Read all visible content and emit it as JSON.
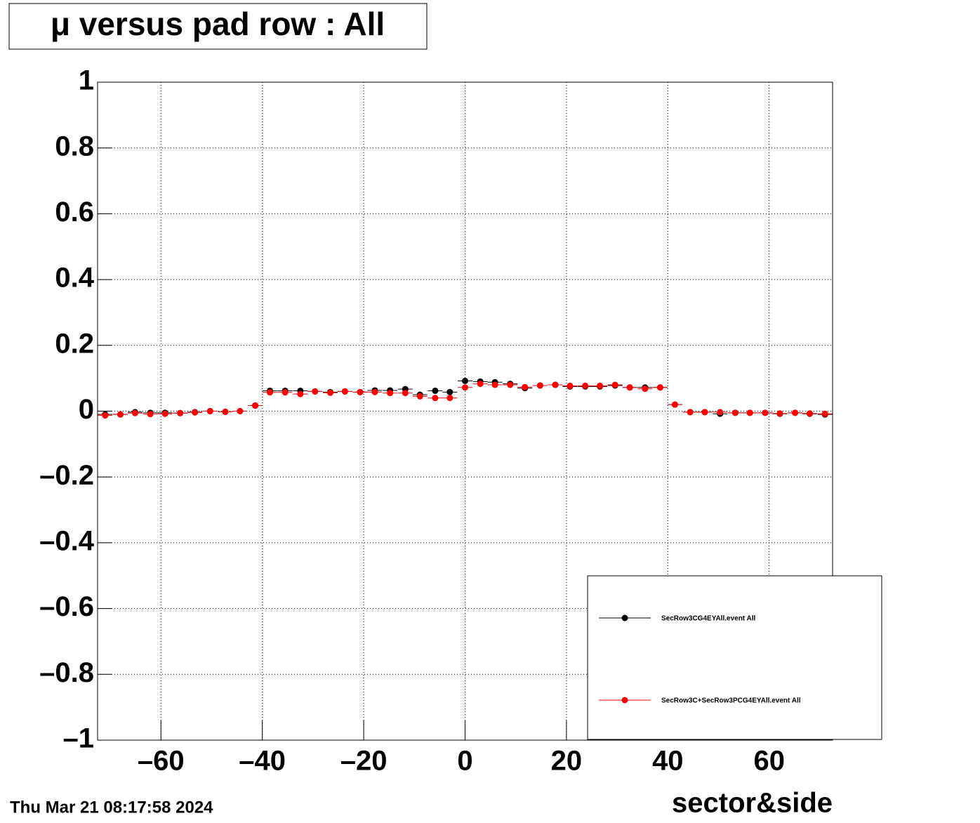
{
  "chart_data": {
    "type": "scatter",
    "title": "μ versus pad row : All",
    "x_label": "sector&side",
    "timestamp": "Thu Mar 21 08:17:58 2024",
    "xlim": [
      -72.5,
      72.5
    ],
    "xticks": [
      {
        "value": -60,
        "label": "–60"
      },
      {
        "value": -40,
        "label": "–40"
      },
      {
        "value": -20,
        "label": "–20"
      },
      0,
      20,
      40,
      60
    ],
    "ylim": [
      -1,
      1
    ],
    "yticks": [
      {
        "value": -1,
        "label": "–1"
      },
      {
        "value": -0.8,
        "label": "–0.8"
      },
      {
        "value": -0.6,
        "label": "–0.6"
      },
      {
        "value": -0.4,
        "label": "–0.4"
      },
      {
        "value": -0.2,
        "label": "–0.2"
      },
      0,
      0.2,
      0.4,
      0.6,
      0.8,
      1
    ],
    "grid": true,
    "legend": "bottom-right",
    "x": [
      -71.0,
      -68.0,
      -65.1,
      -62.1,
      -59.2,
      -56.2,
      -53.3,
      -50.3,
      -47.3,
      -44.4,
      -41.4,
      -38.5,
      -35.5,
      -32.5,
      -29.6,
      -26.6,
      -23.7,
      -20.7,
      -17.8,
      -14.8,
      -11.8,
      -8.9,
      -5.9,
      -3.0,
      0,
      3.0,
      5.9,
      8.9,
      11.8,
      14.8,
      17.8,
      20.7,
      23.7,
      26.6,
      29.6,
      32.5,
      35.5,
      38.5,
      41.4,
      44.4,
      47.3,
      50.3,
      53.3,
      56.2,
      59.2,
      62.1,
      65.1,
      68.0,
      71.0
    ],
    "series": [
      {
        "name": "SecRow3CG4EYAll.event All",
        "color": "#000000",
        "values": [
          -0.01,
          -0.01,
          -0.003,
          -0.005,
          -0.005,
          -0.006,
          -0.003,
          0.0,
          -0.002,
          0.0,
          0.017,
          0.062,
          0.062,
          0.062,
          0.06,
          0.058,
          0.06,
          0.058,
          0.063,
          0.063,
          0.067,
          0.05,
          0.062,
          0.058,
          0.092,
          0.09,
          0.088,
          0.083,
          0.07,
          0.078,
          0.08,
          0.075,
          0.075,
          0.075,
          0.078,
          0.072,
          0.072,
          0.072,
          0.02,
          -0.003,
          -0.003,
          -0.008,
          -0.005,
          -0.005,
          -0.005,
          -0.008,
          -0.005,
          -0.008,
          -0.01
        ]
      },
      {
        "name": "SecRow3C+SecRow3PCG4EYAll.event All",
        "color": "#ff0000",
        "values": [
          -0.013,
          -0.01,
          -0.006,
          -0.009,
          -0.008,
          -0.006,
          -0.004,
          0.0,
          -0.002,
          0.0,
          0.017,
          0.057,
          0.057,
          0.052,
          0.06,
          0.056,
          0.06,
          0.058,
          0.058,
          0.055,
          0.055,
          0.045,
          0.04,
          0.04,
          0.072,
          0.083,
          0.08,
          0.08,
          0.073,
          0.078,
          0.08,
          0.077,
          0.077,
          0.077,
          0.08,
          0.072,
          0.068,
          0.072,
          0.02,
          -0.003,
          -0.003,
          -0.003,
          -0.005,
          -0.005,
          -0.005,
          -0.007,
          -0.005,
          -0.007,
          -0.008
        ]
      }
    ]
  }
}
